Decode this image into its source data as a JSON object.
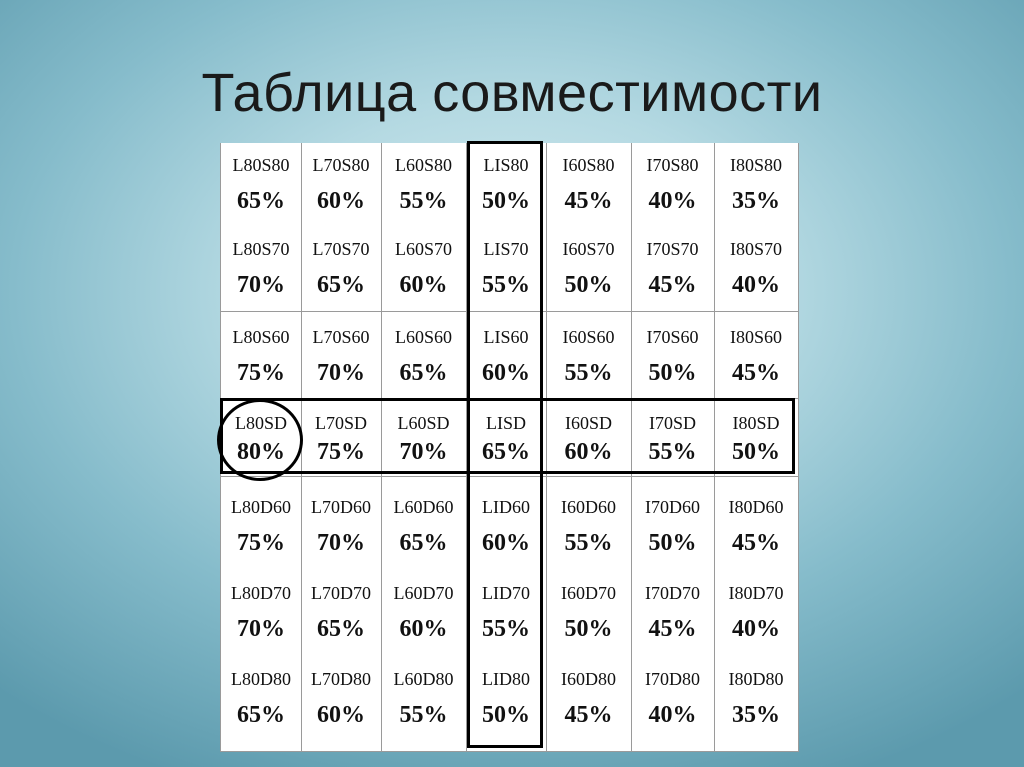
{
  "title": "Таблица совместимости",
  "table": {
    "rows": [
      [
        [
          "L80S80",
          "65%"
        ],
        [
          "L70S80",
          "60%"
        ],
        [
          "L60S80",
          "55%"
        ],
        [
          "LIS80",
          "50%"
        ],
        [
          "I60S80",
          "45%"
        ],
        [
          "I70S80",
          "40%"
        ],
        [
          "I80S80",
          "35%"
        ]
      ],
      [
        [
          "L80S70",
          "70%"
        ],
        [
          "L70S70",
          "65%"
        ],
        [
          "L60S70",
          "60%"
        ],
        [
          "LIS70",
          "55%"
        ],
        [
          "I60S70",
          "50%"
        ],
        [
          "I70S70",
          "45%"
        ],
        [
          "I80S70",
          "40%"
        ]
      ],
      [
        [
          "L80S60",
          "75%"
        ],
        [
          "L70S60",
          "70%"
        ],
        [
          "L60S60",
          "65%"
        ],
        [
          "LIS60",
          "60%"
        ],
        [
          "I60S60",
          "55%"
        ],
        [
          "I70S60",
          "50%"
        ],
        [
          "I80S60",
          "45%"
        ]
      ],
      [
        [
          "L80SD",
          "80%"
        ],
        [
          "L70SD",
          "75%"
        ],
        [
          "L60SD",
          "70%"
        ],
        [
          "LISD",
          "65%"
        ],
        [
          "I60SD",
          "60%"
        ],
        [
          "I70SD",
          "55%"
        ],
        [
          "I80SD",
          "50%"
        ]
      ],
      [
        [
          "L80D60",
          "75%"
        ],
        [
          "L70D60",
          "70%"
        ],
        [
          "L60D60",
          "65%"
        ],
        [
          "LID60",
          "60%"
        ],
        [
          "I60D60",
          "55%"
        ],
        [
          "I70D60",
          "50%"
        ],
        [
          "I80D60",
          "45%"
        ]
      ],
      [
        [
          "L80D70",
          "70%"
        ],
        [
          "L70D70",
          "65%"
        ],
        [
          "L60D70",
          "60%"
        ],
        [
          "LID70",
          "55%"
        ],
        [
          "I60D70",
          "50%"
        ],
        [
          "I70D70",
          "45%"
        ],
        [
          "I80D70",
          "40%"
        ]
      ],
      [
        [
          "L80D80",
          "65%"
        ],
        [
          "L70D80",
          "60%"
        ],
        [
          "L60D80",
          "55%"
        ],
        [
          "LID80",
          "50%"
        ],
        [
          "I60D80",
          "45%"
        ],
        [
          "I70D80",
          "40%"
        ],
        [
          "I80D80",
          "35%"
        ]
      ]
    ],
    "highlighted_row": 3,
    "highlighted_col": 3,
    "circled_cell": [
      3,
      0
    ]
  }
}
